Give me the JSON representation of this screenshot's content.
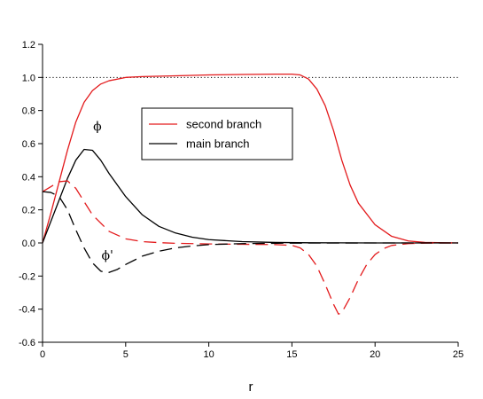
{
  "chart_data": {
    "type": "line",
    "title": "",
    "xlabel": "r",
    "ylabel": "",
    "xlim": [
      0,
      25
    ],
    "ylim": [
      -0.6,
      1.2
    ],
    "x_ticks": [
      0,
      5,
      10,
      15,
      20,
      25
    ],
    "y_ticks": [
      -0.6,
      -0.4,
      -0.2,
      0.0,
      0.2,
      0.4,
      0.6,
      0.8,
      1.0,
      1.2
    ],
    "x_tick_labels": [
      "0",
      "5",
      "10",
      "15",
      "20",
      "25"
    ],
    "y_tick_labels": [
      "-0.6",
      "-0.4",
      "-0.2",
      "0.0",
      "0.2",
      "0.4",
      "0.6",
      "0.8",
      "1.0",
      "1.2"
    ],
    "grid": false,
    "legend_position": "upper-center",
    "legend": [
      {
        "label": "second branch",
        "color": "#e31a1c"
      },
      {
        "label": "main branch",
        "color": "#000000"
      }
    ],
    "reference_line": {
      "y": 1.0,
      "style": "dotted",
      "color": "#000000"
    },
    "annotations": [
      {
        "text": "ϕ",
        "x": 3.3,
        "y": 0.68
      },
      {
        "text": "ϕ'",
        "x": 3.9,
        "y": -0.1
      }
    ],
    "series": [
      {
        "color": "#e31a1c",
        "dash": "solid",
        "x": [
          0,
          0.5,
          1,
          1.5,
          2,
          2.5,
          3,
          3.5,
          4,
          5,
          6,
          8,
          10,
          12,
          14,
          15,
          15.5,
          16,
          16.5,
          17,
          17.5,
          18,
          18.5,
          19,
          20,
          21,
          22,
          23,
          25
        ],
        "y": [
          0.0,
          0.18,
          0.37,
          0.56,
          0.73,
          0.85,
          0.92,
          0.96,
          0.98,
          1.0,
          1.005,
          1.01,
          1.015,
          1.018,
          1.02,
          1.02,
          1.015,
          0.99,
          0.93,
          0.83,
          0.68,
          0.5,
          0.35,
          0.24,
          0.11,
          0.04,
          0.012,
          0.003,
          0.0
        ]
      },
      {
        "color": "#000000",
        "dash": "solid",
        "x": [
          0,
          0.5,
          1,
          1.5,
          2,
          2.5,
          3,
          3.5,
          4,
          5,
          6,
          7,
          8,
          9,
          10,
          12,
          14,
          16,
          20,
          25
        ],
        "y": [
          0.0,
          0.13,
          0.26,
          0.39,
          0.5,
          0.565,
          0.56,
          0.5,
          0.42,
          0.28,
          0.17,
          0.1,
          0.06,
          0.035,
          0.02,
          0.008,
          0.003,
          0.001,
          0.0,
          0.0
        ]
      },
      {
        "color": "#e31a1c",
        "dash": "dashed",
        "x": [
          0,
          0.5,
          1,
          1.5,
          2,
          2.5,
          3,
          4,
          5,
          6,
          7,
          8,
          10,
          12,
          14,
          15,
          15.5,
          16,
          16.5,
          17,
          17.5,
          17.8,
          18,
          18.5,
          19,
          19.5,
          20,
          20.5,
          21,
          22,
          23,
          25
        ],
        "y": [
          0.31,
          0.34,
          0.37,
          0.375,
          0.33,
          0.25,
          0.17,
          0.07,
          0.025,
          0.008,
          0.002,
          -0.002,
          -0.006,
          -0.008,
          -0.01,
          -0.015,
          -0.03,
          -0.07,
          -0.14,
          -0.25,
          -0.37,
          -0.43,
          -0.42,
          -0.33,
          -0.22,
          -0.13,
          -0.07,
          -0.035,
          -0.015,
          -0.004,
          -0.001,
          0.0
        ]
      },
      {
        "color": "#000000",
        "dash": "dashed",
        "x": [
          0,
          0.5,
          1,
          1.5,
          2,
          2.5,
          3,
          3.5,
          3.8,
          4,
          4.5,
          5,
          6,
          7,
          8,
          9,
          10,
          12,
          15,
          20,
          25
        ],
        "y": [
          0.31,
          0.305,
          0.28,
          0.2,
          0.08,
          -0.03,
          -0.12,
          -0.17,
          -0.18,
          -0.178,
          -0.16,
          -0.13,
          -0.08,
          -0.05,
          -0.03,
          -0.018,
          -0.01,
          -0.004,
          -0.001,
          0.0,
          0.0
        ]
      }
    ]
  }
}
